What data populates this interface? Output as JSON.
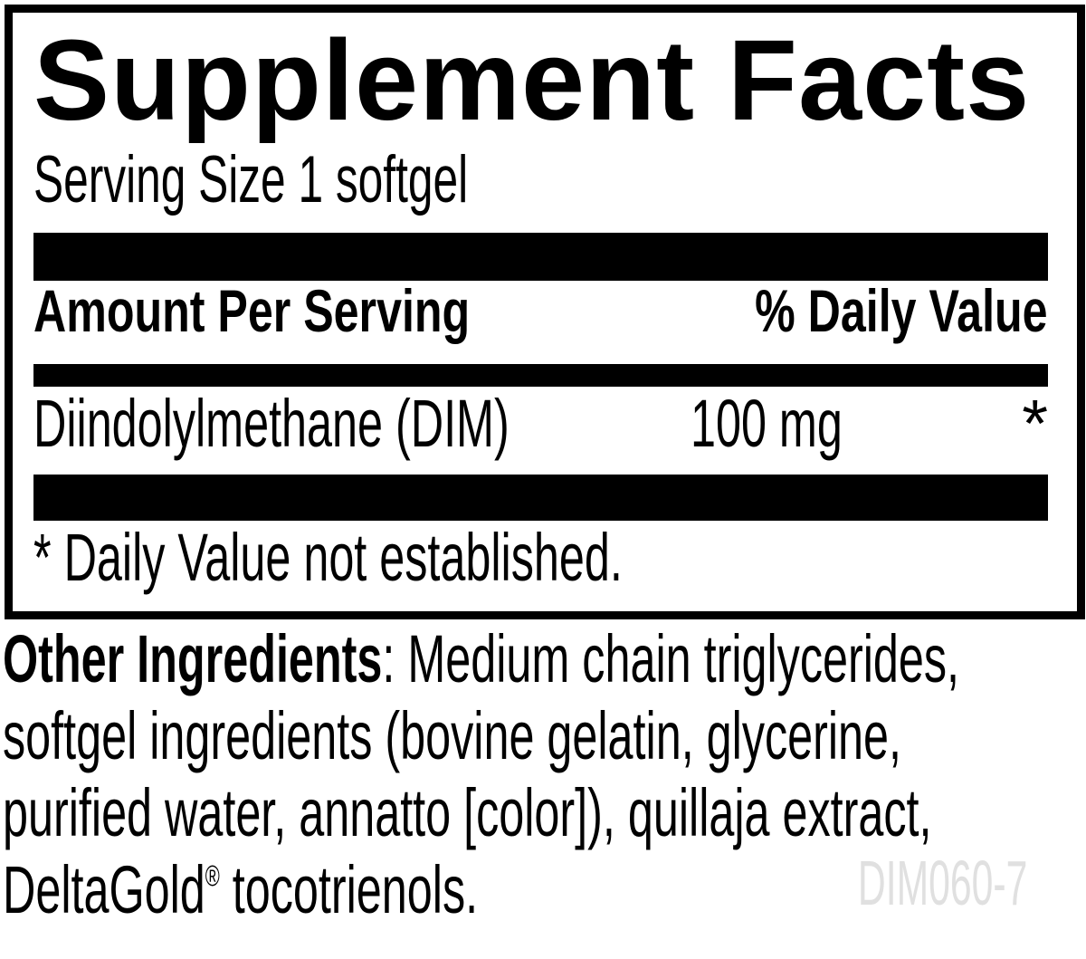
{
  "panel": {
    "title": "Supplement Facts",
    "serving_size": "Serving Size 1 softgel",
    "columns": {
      "amount_per_serving": "Amount Per Serving",
      "percent_daily_value": "% Daily Value"
    },
    "rows": [
      {
        "name": "Diindolylmethane (DIM)",
        "amount": "100 mg",
        "daily_value": "*"
      }
    ],
    "footnote": "* Daily Value not established."
  },
  "other_ingredients": {
    "lines": [
      {
        "bold": "Other Ingredients",
        "text": ": Medium chain triglycerides,"
      },
      {
        "text": "softgel ingredients (bovine gelatin, glycerine,"
      },
      {
        "text": "purified water, annatto [color]), quillaja extract,"
      },
      {
        "brand": "DeltaGold",
        "mark": "®",
        "text": " tocotrienols."
      }
    ]
  },
  "product_code": "DIM060-7",
  "colors": {
    "ink": "#000000",
    "paper": "#ffffff",
    "product_code": "#e0e0e0"
  }
}
